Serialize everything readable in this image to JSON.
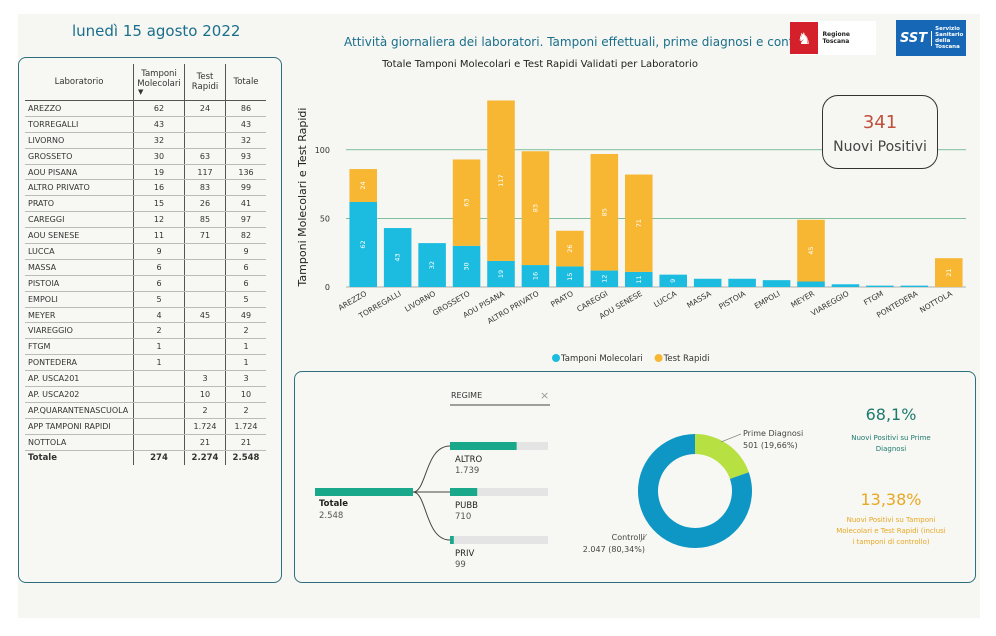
{
  "header": {
    "date": "lunedì 15 agosto 2022",
    "title": "Attività giornaliera dei laboratori. Tamponi effettuali, prime diagnosi e controlli",
    "logo_rt_text": "Regione Toscana",
    "logo_sst_abbr": "SST",
    "logo_sst_lines": [
      "Servizio",
      "Sanitario",
      "della",
      "Toscana"
    ]
  },
  "table": {
    "headers": {
      "lab": "Laboratorio",
      "mol": "Tamponi Molecolari",
      "rap": "Test Rapidi",
      "tot": "Totale"
    },
    "rows": [
      {
        "lab": "AREZZO",
        "mol": "62",
        "rap": "24",
        "tot": "86"
      },
      {
        "lab": "TORREGALLI",
        "mol": "43",
        "rap": "",
        "tot": "43"
      },
      {
        "lab": "LIVORNO",
        "mol": "32",
        "rap": "",
        "tot": "32"
      },
      {
        "lab": "GROSSETO",
        "mol": "30",
        "rap": "63",
        "tot": "93"
      },
      {
        "lab": "AOU PISANA",
        "mol": "19",
        "rap": "117",
        "tot": "136"
      },
      {
        "lab": "ALTRO PRIVATO",
        "mol": "16",
        "rap": "83",
        "tot": "99"
      },
      {
        "lab": "PRATO",
        "mol": "15",
        "rap": "26",
        "tot": "41"
      },
      {
        "lab": "CAREGGI",
        "mol": "12",
        "rap": "85",
        "tot": "97"
      },
      {
        "lab": "AOU SENESE",
        "mol": "11",
        "rap": "71",
        "tot": "82"
      },
      {
        "lab": "LUCCA",
        "mol": "9",
        "rap": "",
        "tot": "9"
      },
      {
        "lab": "MASSA",
        "mol": "6",
        "rap": "",
        "tot": "6"
      },
      {
        "lab": "PISTOIA",
        "mol": "6",
        "rap": "",
        "tot": "6"
      },
      {
        "lab": "EMPOLI",
        "mol": "5",
        "rap": "",
        "tot": "5"
      },
      {
        "lab": "MEYER",
        "mol": "4",
        "rap": "45",
        "tot": "49"
      },
      {
        "lab": "VIAREGGIO",
        "mol": "2",
        "rap": "",
        "tot": "2"
      },
      {
        "lab": "FTGM",
        "mol": "1",
        "rap": "",
        "tot": "1"
      },
      {
        "lab": "PONTEDERA",
        "mol": "1",
        "rap": "",
        "tot": "1"
      },
      {
        "lab": "AP. USCA201",
        "mol": "",
        "rap": "3",
        "tot": "3"
      },
      {
        "lab": "AP. USCA202",
        "mol": "",
        "rap": "10",
        "tot": "10"
      },
      {
        "lab": "AP.QUARANTENASCUOLA",
        "mol": "",
        "rap": "2",
        "tot": "2"
      },
      {
        "lab": "APP TAMPONI RAPIDI",
        "mol": "",
        "rap": "1.724",
        "tot": "1.724"
      },
      {
        "lab": "NOTTOLA",
        "mol": "",
        "rap": "21",
        "tot": "21"
      }
    ],
    "total": {
      "lab": "Totale",
      "mol": "274",
      "rap": "2.274",
      "tot": "2.548"
    }
  },
  "kpi": {
    "value": "341",
    "label": "Nuovi Positivi"
  },
  "chart_data": [
    {
      "type": "bar",
      "stacked": true,
      "title": "Totale Tamponi Molecolari e Test Rapidi Validati per Laboratorio",
      "ylabel": "Tamponi Molecolari e Test Rapidi",
      "xlabel": "",
      "ylim": [
        0,
        140
      ],
      "yticks": [
        0,
        50,
        100
      ],
      "grid": true,
      "legend_position": "bottom",
      "categories": [
        "AREZZO",
        "TORREGALLI",
        "LIVORNO",
        "GROSSETO",
        "AOU PISANA",
        "ALTRO PRIVATO",
        "PRATO",
        "CAREGGI",
        "AOU SENESE",
        "LUCCA",
        "MASSA",
        "PISTOIA",
        "EMPOLI",
        "MEYER",
        "VIAREGGIO",
        "FTGM",
        "PONTEDERA",
        "NOTTOLA"
      ],
      "series": [
        {
          "name": "Tamponi Molecolari",
          "color": "#1cbce0",
          "values": [
            62,
            43,
            32,
            30,
            19,
            16,
            15,
            12,
            11,
            9,
            6,
            6,
            5,
            4,
            2,
            1,
            1,
            0
          ]
        },
        {
          "name": "Test Rapidi",
          "color": "#f7b733",
          "values": [
            24,
            0,
            0,
            63,
            117,
            83,
            26,
            85,
            71,
            0,
            0,
            0,
            0,
            45,
            0,
            0,
            0,
            21
          ]
        }
      ]
    },
    {
      "type": "pie",
      "donut": true,
      "labels": [
        "Prime Diagnosi",
        "Controlli"
      ],
      "values": [
        501,
        2047
      ],
      "display": [
        "501 (19,66%)",
        "2.047 (80,34%)"
      ],
      "colors": [
        "#b7e043",
        "#0e97c4"
      ]
    },
    {
      "type": "bar",
      "orientation": "horizontal",
      "title": "REGIME",
      "root": {
        "label": "Totale",
        "value": 2548,
        "display": "2.548"
      },
      "categories": [
        "ALTRO",
        "PUBB",
        "PRIV"
      ],
      "values": [
        1739,
        710,
        99
      ],
      "display": [
        "1.739",
        "710",
        "99"
      ],
      "color": "#1aa88a"
    }
  ],
  "stats": [
    {
      "value": "68,1%",
      "label": "Nuovi Positivi su Prime Diagnosi",
      "color": "#1f7a6e"
    },
    {
      "value": "13,38%",
      "label": "Nuovi Positivi su Tamponi Molecolari e Test Rapidi (inclusi i tamponi di controllo)",
      "color": "#e8a825"
    }
  ],
  "icons": {
    "sort": "sort-down-icon",
    "close": "close-icon"
  }
}
